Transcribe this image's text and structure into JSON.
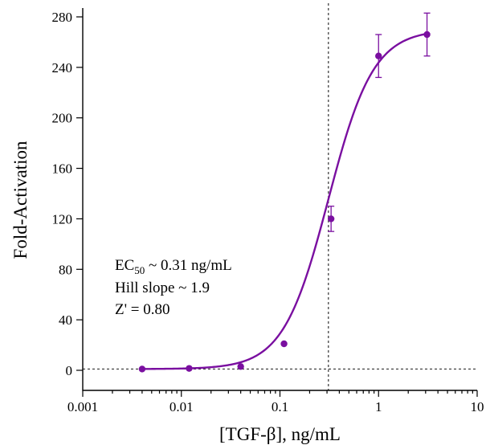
{
  "chart_data": {
    "type": "scatter",
    "title": "",
    "xlabel": "[TGF-β], ng/mL",
    "ylabel": "Fold-Activation",
    "xscale": "log",
    "xlim": [
      0.001,
      10
    ],
    "ylim": [
      0,
      280
    ],
    "xticks": [
      {
        "value": 0.001,
        "label": "0.001"
      },
      {
        "value": 0.01,
        "label": "0.01"
      },
      {
        "value": 0.1,
        "label": "0.1"
      },
      {
        "value": 1,
        "label": "1"
      },
      {
        "value": 10,
        "label": "10"
      }
    ],
    "yticks": [
      {
        "value": 0,
        "label": "0"
      },
      {
        "value": 40,
        "label": "40"
      },
      {
        "value": 80,
        "label": "80"
      },
      {
        "value": 120,
        "label": "120"
      },
      {
        "value": 160,
        "label": "160"
      },
      {
        "value": 200,
        "label": "200"
      },
      {
        "value": 240,
        "label": "240"
      },
      {
        "value": 280,
        "label": "280"
      }
    ],
    "grid": false,
    "color": "#7a0fa0",
    "series": [
      {
        "points": [
          {
            "x": 0.004,
            "y": 1,
            "err": 0
          },
          {
            "x": 0.012,
            "y": 1.5,
            "err": 0
          },
          {
            "x": 0.04,
            "y": 3,
            "err": 0
          },
          {
            "x": 0.11,
            "y": 21,
            "err": 0
          },
          {
            "x": 0.33,
            "y": 120,
            "err": 10
          },
          {
            "x": 1.0,
            "y": 249,
            "err": 17
          },
          {
            "x": 3.1,
            "y": 266,
            "err": 17
          }
        ]
      }
    ],
    "fit": {
      "model": "4PL",
      "bottom": 1,
      "top": 270,
      "ec50": 0.31,
      "hill": 1.9
    },
    "reference_lines": {
      "vertical_x": 0.31,
      "horizontal_y": 1
    },
    "annotation": {
      "ec50_prefix": "EC",
      "ec50_sub": "50",
      "ec50_suffix": " ~ 0.31 ng/mL",
      "hill": "Hill slope ~ 1.9",
      "zprime": "Z' = 0.80"
    }
  }
}
